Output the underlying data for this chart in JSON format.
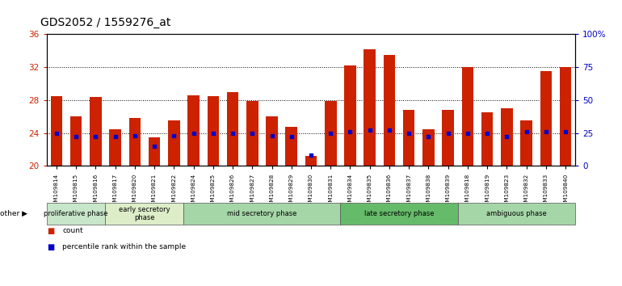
{
  "title": "GDS2052 / 1559276_at",
  "samples": [
    "GSM109814",
    "GSM109815",
    "GSM109816",
    "GSM109817",
    "GSM109820",
    "GSM109821",
    "GSM109822",
    "GSM109824",
    "GSM109825",
    "GSM109826",
    "GSM109827",
    "GSM109828",
    "GSM109829",
    "GSM109830",
    "GSM109831",
    "GSM109834",
    "GSM109835",
    "GSM109836",
    "GSM109837",
    "GSM109838",
    "GSM109839",
    "GSM109818",
    "GSM109819",
    "GSM109823",
    "GSM109832",
    "GSM109833",
    "GSM109840"
  ],
  "counts": [
    28.5,
    26.0,
    28.4,
    24.5,
    25.8,
    23.5,
    25.5,
    28.6,
    28.5,
    29.0,
    27.9,
    26.0,
    24.7,
    21.2,
    27.9,
    32.2,
    34.2,
    33.5,
    26.8,
    24.5,
    26.8,
    32.0,
    26.5,
    27.0,
    25.5,
    31.5,
    32.0
  ],
  "percentile_values": [
    25,
    22,
    22,
    22,
    23,
    15,
    23,
    25,
    25,
    25,
    25,
    23,
    22,
    8,
    25,
    26,
    27,
    27,
    25,
    22,
    25,
    25,
    25,
    22,
    26,
    26,
    26
  ],
  "phases": [
    {
      "label": "proliferative phase",
      "start": 0,
      "end": 3,
      "color": "#c8e6c9"
    },
    {
      "label": "early secretory\nphase",
      "start": 3,
      "end": 7,
      "color": "#dcedc8"
    },
    {
      "label": "mid secretory phase",
      "start": 7,
      "end": 15,
      "color": "#a5d6a7"
    },
    {
      "label": "late secretory phase",
      "start": 15,
      "end": 21,
      "color": "#66bb6a"
    },
    {
      "label": "ambiguous phase",
      "start": 21,
      "end": 27,
      "color": "#a5d6a7"
    }
  ],
  "ylim": [
    20,
    36
  ],
  "y2lim": [
    0,
    100
  ],
  "y_ticks": [
    20,
    24,
    28,
    32,
    36
  ],
  "y2_ticks": [
    0,
    25,
    50,
    75,
    100
  ],
  "bar_color": "#cc2200",
  "dot_color": "#0000cc",
  "title_fontsize": 10,
  "axis_label_color_left": "#cc2200",
  "axis_label_color_right": "#0000cc",
  "baseline": 20
}
